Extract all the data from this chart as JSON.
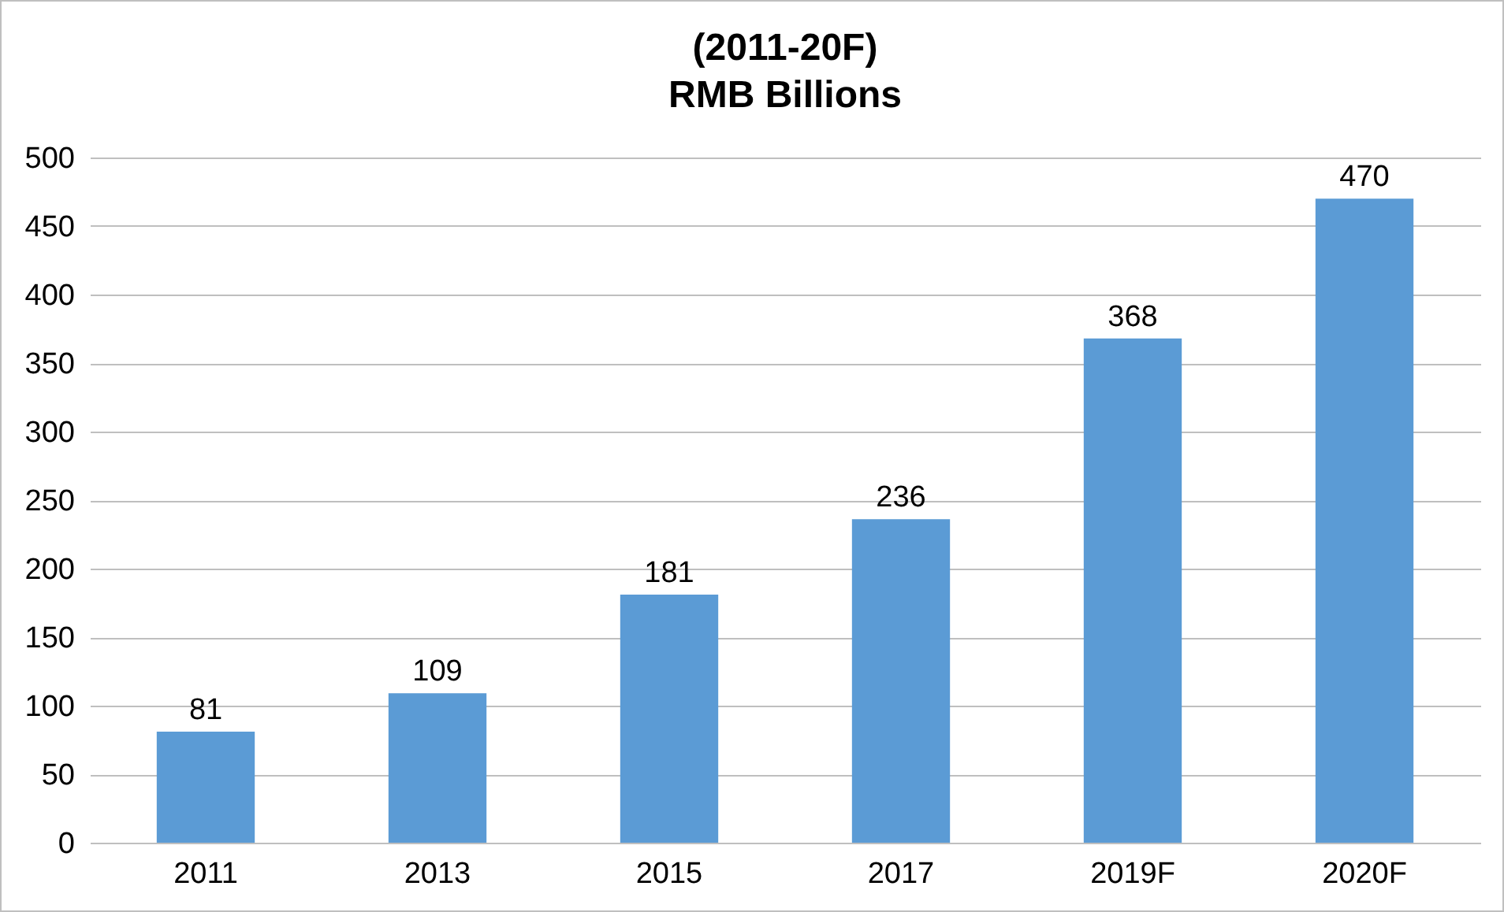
{
  "chart_data": {
    "type": "bar",
    "title": "(2011-20F)",
    "subtitle": "RMB Billions",
    "categories": [
      "2011",
      "2013",
      "2015",
      "2017",
      "2019F",
      "2020F"
    ],
    "values": [
      81,
      109,
      181,
      236,
      368,
      470
    ],
    "color": "#5b9bd5",
    "ylim": [
      0,
      500
    ],
    "yticks": [
      0,
      50,
      100,
      150,
      200,
      250,
      300,
      350,
      400,
      450,
      500
    ],
    "grid": "y",
    "data_labels": true
  }
}
